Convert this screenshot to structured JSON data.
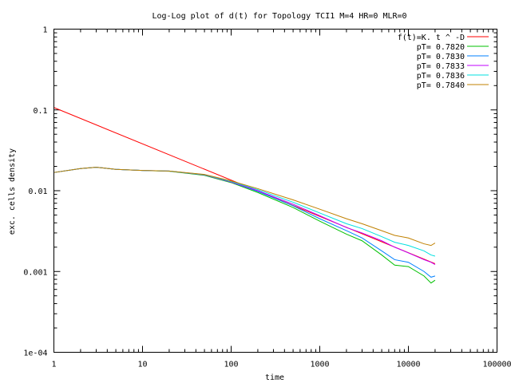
{
  "chart_data": {
    "type": "line",
    "title": "Log-Log plot of d(t) for Topology TCI1 M=4 HR=0 MLR=0",
    "xlabel": "time",
    "ylabel": "exc. cells density",
    "xscale": "log",
    "yscale": "log",
    "xlim": [
      1,
      100000
    ],
    "ylim": [
      0.0001,
      1
    ],
    "x_ticks": [
      {
        "value": 1,
        "label": "1"
      },
      {
        "value": 10,
        "label": "10"
      },
      {
        "value": 100,
        "label": "100"
      },
      {
        "value": 1000,
        "label": "1000"
      },
      {
        "value": 10000,
        "label": "10000"
      },
      {
        "value": 100000,
        "label": "100000"
      }
    ],
    "y_ticks": [
      {
        "value": 1,
        "label": "1"
      },
      {
        "value": 0.1,
        "label": "0.1"
      },
      {
        "value": 0.01,
        "label": "0.01"
      },
      {
        "value": 0.001,
        "label": "0.001"
      },
      {
        "value": 0.0001,
        "label": "1e-04"
      }
    ],
    "grid": false,
    "legend_position": "top-right",
    "series": [
      {
        "name": "f(t)=K. t ^ -D",
        "color": "#ff0000",
        "x": [
          1,
          20000
        ],
        "y": [
          0.107,
          0.00125
        ]
      },
      {
        "name": "pT= 0.7820",
        "color": "#00c000",
        "x": [
          1,
          2,
          3,
          5,
          10,
          20,
          50,
          100,
          200,
          500,
          1000,
          2000,
          3000,
          5000,
          7000,
          10000,
          15000,
          18000,
          20000
        ],
        "y": [
          0.0168,
          0.0188,
          0.0195,
          0.0184,
          0.0178,
          0.0174,
          0.0155,
          0.0126,
          0.0095,
          0.0062,
          0.0042,
          0.0029,
          0.0024,
          0.0016,
          0.0012,
          0.00115,
          0.00088,
          0.00072,
          0.00078
        ]
      },
      {
        "name": "pT= 0.7830",
        "color": "#0080ff",
        "x": [
          1,
          2,
          3,
          5,
          10,
          20,
          50,
          100,
          200,
          500,
          1000,
          2000,
          3000,
          5000,
          7000,
          10000,
          15000,
          18000,
          20000
        ],
        "y": [
          0.0168,
          0.0188,
          0.0195,
          0.0184,
          0.0178,
          0.0175,
          0.0157,
          0.0128,
          0.0098,
          0.0065,
          0.0045,
          0.0032,
          0.0026,
          0.0018,
          0.0014,
          0.0013,
          0.001,
          0.00085,
          0.00088
        ]
      },
      {
        "name": "pT= 0.7833",
        "color": "#c000ff",
        "x": [
          1,
          2,
          3,
          5,
          10,
          20,
          50,
          100,
          200,
          500,
          1000,
          2000,
          3000,
          5000,
          7000,
          10000,
          15000,
          18000,
          20000
        ],
        "y": [
          0.0168,
          0.0188,
          0.0195,
          0.0184,
          0.0178,
          0.0175,
          0.0157,
          0.0128,
          0.01,
          0.0068,
          0.0049,
          0.0035,
          0.003,
          0.0024,
          0.002,
          0.0017,
          0.0014,
          0.0013,
          0.00122
        ]
      },
      {
        "name": "pT= 0.7836",
        "color": "#00e0e0",
        "x": [
          1,
          2,
          3,
          5,
          10,
          20,
          50,
          100,
          200,
          500,
          1000,
          2000,
          3000,
          5000,
          7000,
          10000,
          15000,
          18000,
          20000
        ],
        "y": [
          0.0168,
          0.0188,
          0.0195,
          0.0184,
          0.0178,
          0.0175,
          0.0158,
          0.013,
          0.0103,
          0.0072,
          0.0053,
          0.0039,
          0.0034,
          0.0027,
          0.0023,
          0.0021,
          0.0018,
          0.0016,
          0.00155
        ]
      },
      {
        "name": "pT= 0.7840",
        "color": "#c08000",
        "x": [
          1,
          2,
          3,
          5,
          10,
          20,
          50,
          100,
          200,
          500,
          1000,
          2000,
          3000,
          5000,
          7000,
          10000,
          15000,
          18000,
          20000
        ],
        "y": [
          0.0168,
          0.0188,
          0.0195,
          0.0184,
          0.0178,
          0.0175,
          0.0159,
          0.0132,
          0.0106,
          0.0077,
          0.0059,
          0.0045,
          0.0039,
          0.0032,
          0.0028,
          0.0026,
          0.0022,
          0.0021,
          0.00225
        ]
      }
    ]
  }
}
